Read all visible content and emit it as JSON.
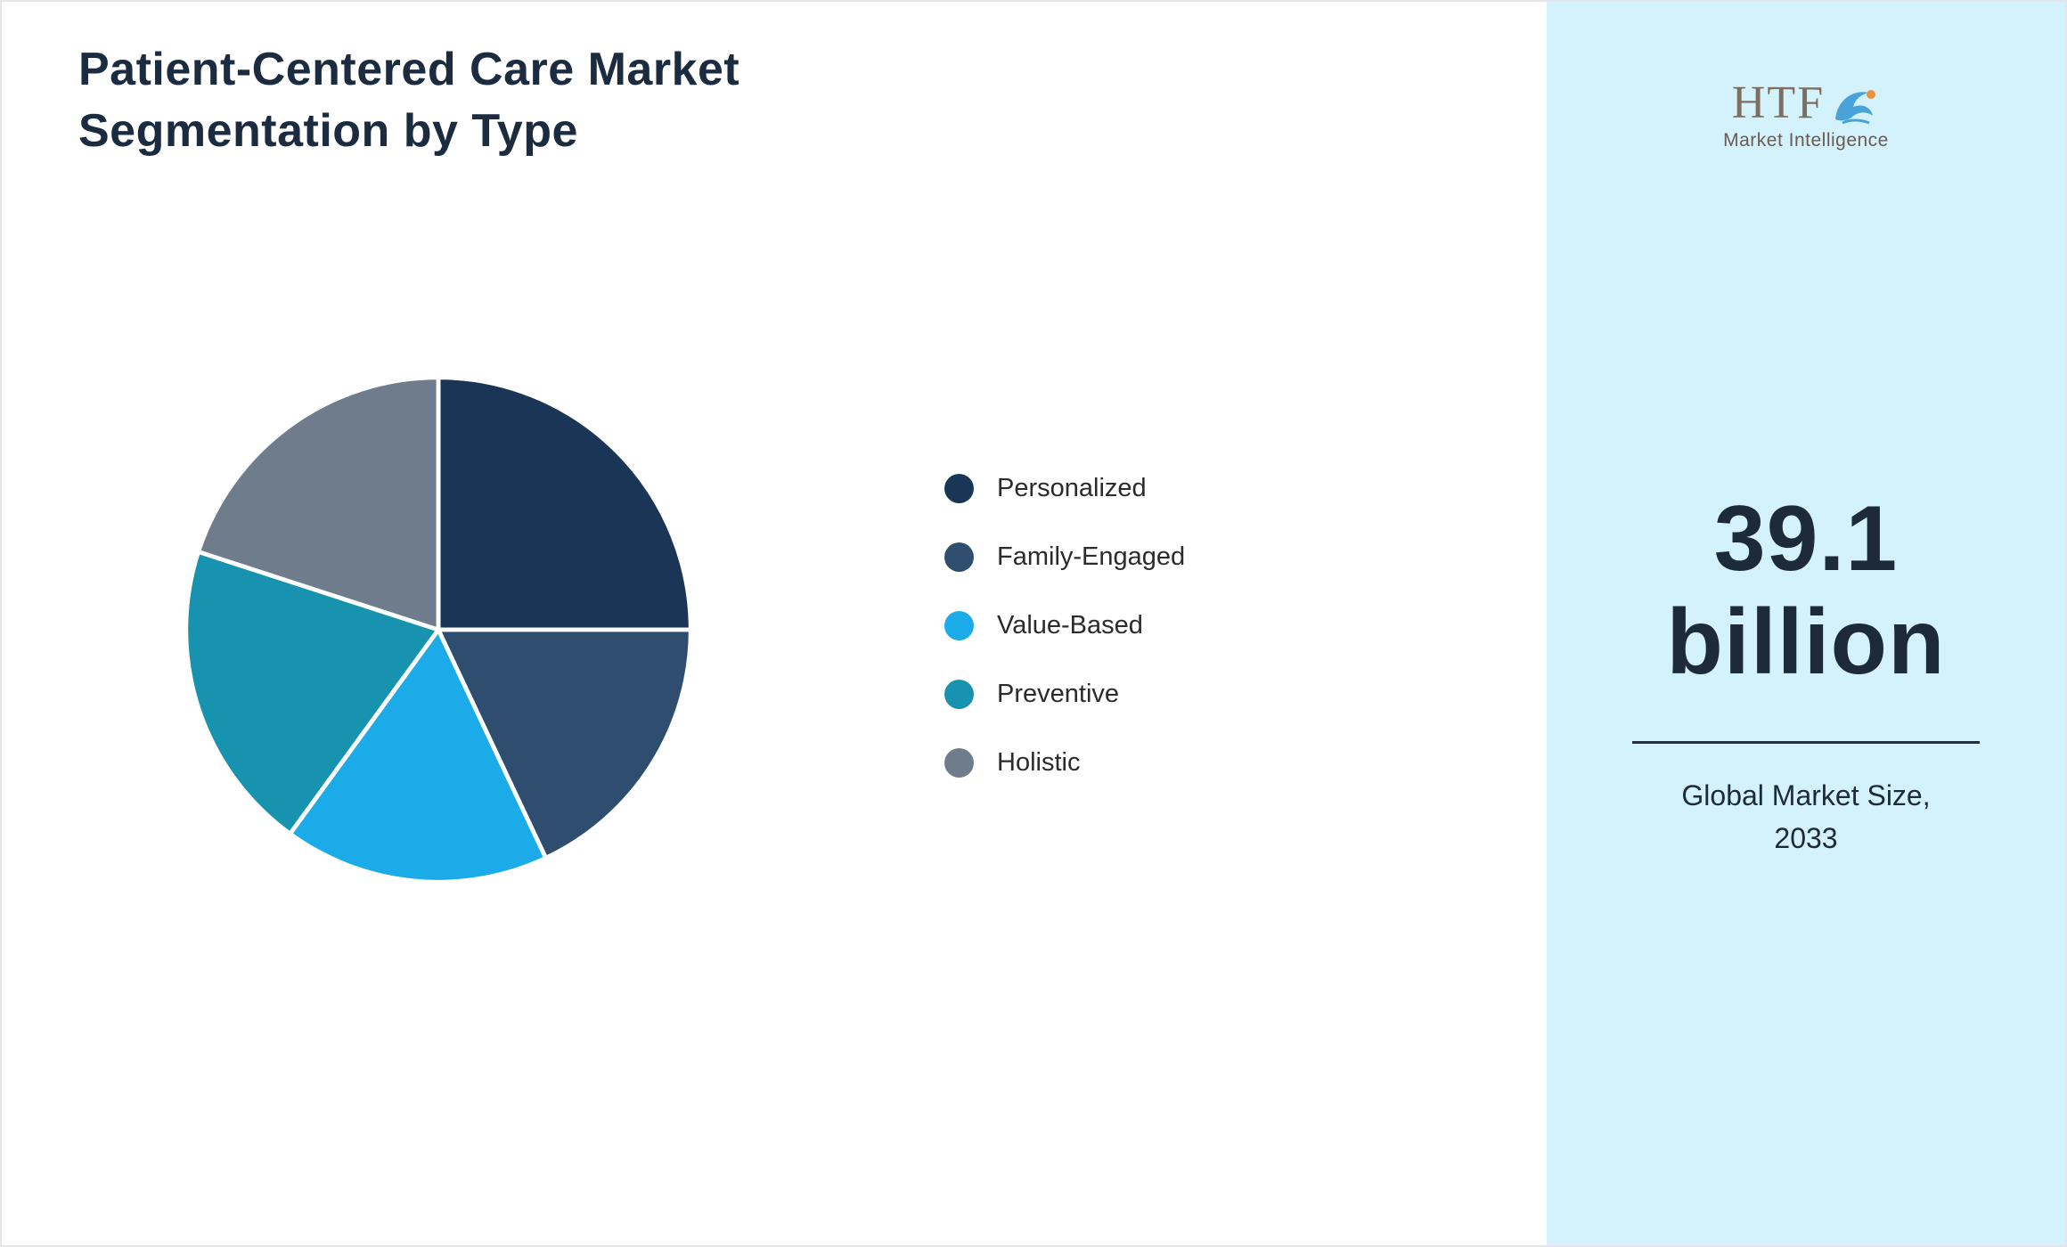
{
  "title": {
    "line1": "Patient-Centered Care Market",
    "line2": "Segmentation by Type"
  },
  "chart_data": {
    "type": "pie",
    "title": "Patient-Centered Care Market Segmentation by Type",
    "categories": [
      "Personalized",
      "Family-Engaged",
      "Value-Based",
      "Preventive",
      "Holistic"
    ],
    "values": [
      25,
      18,
      17,
      20,
      20
    ],
    "colors": [
      "#1b3557",
      "#2f4d6e",
      "#1babe9",
      "#1793af",
      "#6e7c8c"
    ],
    "legend_position": "right",
    "start_angle": "top",
    "direction": "clockwise",
    "slice_separator_color": "#ffffff"
  },
  "sidebar": {
    "background": "#d3f2fb",
    "logo": {
      "text": "HTF",
      "subtext": "Market Intelligence",
      "icon": "dolphin-icon",
      "icon_colors": {
        "body": "#4aa3d8",
        "accent": "#e8923a"
      }
    },
    "value_line1": "39.1",
    "value_line2": "billion",
    "caption_line1": "Global Market Size,",
    "caption_line2": "2033"
  }
}
